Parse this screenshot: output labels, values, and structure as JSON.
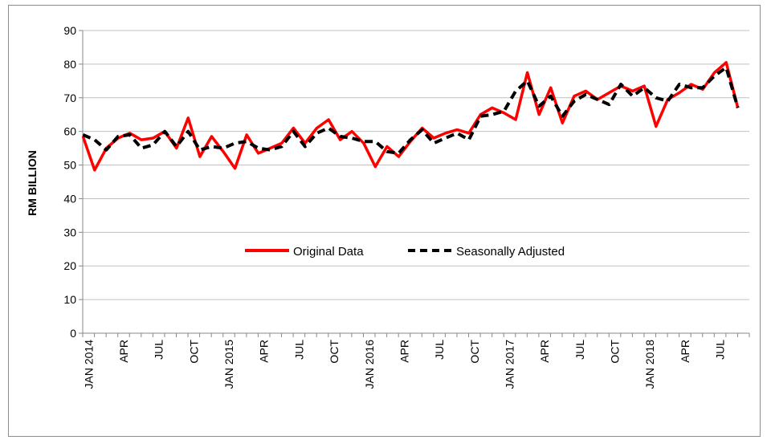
{
  "chart_data": {
    "type": "line",
    "title": "",
    "xlabel": "",
    "ylabel": "RM BILLION",
    "ylim": [
      0,
      90
    ],
    "yticks": [
      0,
      10,
      20,
      30,
      40,
      50,
      60,
      70,
      80,
      90
    ],
    "grid": true,
    "legend_placement": "center",
    "x_tick_labels": [
      {
        "index": 0,
        "label": "JAN 2014"
      },
      {
        "index": 3,
        "label": "APR"
      },
      {
        "index": 6,
        "label": "JUL"
      },
      {
        "index": 9,
        "label": "OCT"
      },
      {
        "index": 12,
        "label": "JAN 2015"
      },
      {
        "index": 15,
        "label": "APR"
      },
      {
        "index": 18,
        "label": "JUL"
      },
      {
        "index": 21,
        "label": "OCT"
      },
      {
        "index": 24,
        "label": "JAN 2016"
      },
      {
        "index": 27,
        "label": "APR"
      },
      {
        "index": 30,
        "label": "JUL"
      },
      {
        "index": 33,
        "label": "OCT"
      },
      {
        "index": 36,
        "label": "JAN 2017"
      },
      {
        "index": 39,
        "label": "APR"
      },
      {
        "index": 42,
        "label": "JUL"
      },
      {
        "index": 45,
        "label": "OCT"
      },
      {
        "index": 48,
        "label": "JAN 2018"
      },
      {
        "index": 51,
        "label": "APR"
      },
      {
        "index": 54,
        "label": "JUL"
      }
    ],
    "series": [
      {
        "name": "Original Data",
        "color": "#ff0000",
        "dashed": false,
        "values": [
          58.5,
          48.5,
          55,
          58,
          59.5,
          57.5,
          58,
          60,
          55,
          64,
          52.5,
          58.5,
          54,
          49,
          59,
          53.5,
          55,
          56.5,
          61,
          56.5,
          61,
          63.5,
          57.5,
          60,
          56.5,
          49.5,
          55.5,
          52.5,
          57,
          61,
          58,
          59.5,
          60.5,
          59.5,
          65,
          67,
          65.5,
          63.5,
          77.5,
          65,
          73,
          62.5,
          70.5,
          72,
          69.5,
          71.5,
          73.5,
          72,
          73.5,
          61.5,
          69.5,
          71.5,
          74,
          72.5,
          77.5,
          80.5,
          67
        ]
      },
      {
        "name": "Seasonally Adjusted",
        "color": "#000000",
        "dashed": true,
        "values": [
          59,
          57.5,
          54.5,
          58.5,
          59,
          55,
          56,
          60,
          55.5,
          60,
          54.5,
          55.5,
          55,
          56.5,
          57,
          55,
          54.5,
          55.5,
          60,
          55.5,
          59.5,
          61,
          58.5,
          58,
          57,
          57,
          54,
          53.5,
          57.5,
          60.5,
          56.5,
          58,
          59.5,
          57.5,
          64.5,
          65,
          66,
          72,
          75,
          67.5,
          70.5,
          64.5,
          69,
          71,
          69.5,
          68,
          74,
          70.5,
          73,
          70,
          69,
          74,
          73,
          73,
          76.5,
          79,
          67
        ]
      }
    ]
  }
}
